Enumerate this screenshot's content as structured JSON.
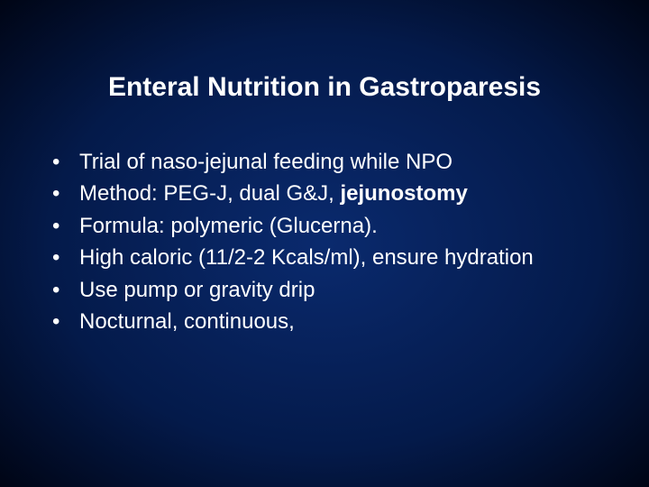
{
  "slide": {
    "title": "Enteral Nutrition in Gastroparesis",
    "bullets": [
      {
        "text": "Trial of naso-jejunal feeding while NPO"
      },
      {
        "prefix": "Method: PEG-J, dual G&J, ",
        "bold": "jejunostomy"
      },
      {
        "text": "Formula: polymeric (Glucerna)."
      },
      {
        "text": "High caloric (11/2-2 Kcals/ml), ensure hydration"
      },
      {
        "text": "Use pump or gravity drip"
      },
      {
        "text": "Nocturnal, continuous,"
      }
    ],
    "colors": {
      "background_center": "#0a2a6e",
      "background_mid": "#041a4a",
      "background_edge": "#000515",
      "text": "#ffffff"
    },
    "typography": {
      "title_fontsize": 30,
      "title_weight": "bold",
      "bullet_fontsize": 24,
      "font_family": "Arial"
    }
  }
}
